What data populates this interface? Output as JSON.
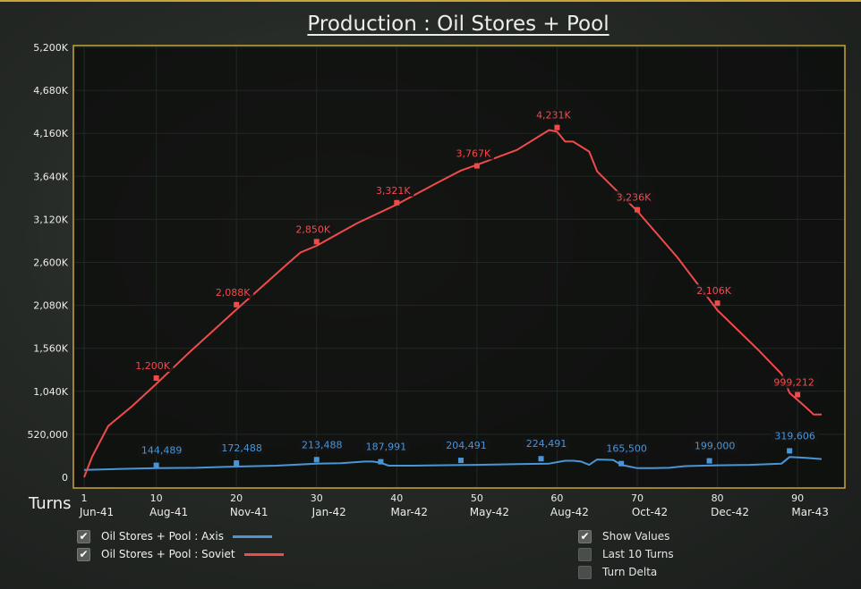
{
  "title": "Production : Oil Stores + Pool",
  "turns_label": "Turns",
  "colors": {
    "axis": "#4a95d6",
    "soviet": "#f04b4b",
    "frame": "#c9a43c"
  },
  "legend": [
    {
      "label": "Oil Stores + Pool : Axis",
      "checked": true,
      "color": "#4a95d6"
    },
    {
      "label": "Oil Stores + Pool : Soviet",
      "checked": true,
      "color": "#f04b4b"
    }
  ],
  "options": [
    {
      "label": "Show Values",
      "checked": true
    },
    {
      "label": "Last 10 Turns",
      "checked": false
    },
    {
      "label": "Turn Delta",
      "checked": false
    }
  ],
  "chart_data": {
    "type": "line",
    "title": "Production : Oil Stores + Pool",
    "xlabel": "Turns",
    "ylabel": "",
    "xlim": [
      1,
      93
    ],
    "ylim": [
      0,
      5200000
    ],
    "grid": true,
    "y_ticks": [
      {
        "value": 0,
        "label": "0"
      },
      {
        "value": 520000,
        "label": "520,000"
      },
      {
        "value": 1040000,
        "label": "1,040K"
      },
      {
        "value": 1560000,
        "label": "1,560K"
      },
      {
        "value": 2080000,
        "label": "2,080K"
      },
      {
        "value": 2600000,
        "label": "2,600K"
      },
      {
        "value": 3120000,
        "label": "3,120K"
      },
      {
        "value": 3640000,
        "label": "3,640K"
      },
      {
        "value": 4160000,
        "label": "4,160K"
      },
      {
        "value": 4680000,
        "label": "4,680K"
      },
      {
        "value": 5200000,
        "label": "5,200K"
      }
    ],
    "x_ticks": [
      {
        "value": 1,
        "num": "1",
        "date": "Jun-41"
      },
      {
        "value": 10,
        "num": "10",
        "date": "Aug-41"
      },
      {
        "value": 20,
        "num": "20",
        "date": "Nov-41"
      },
      {
        "value": 30,
        "num": "30",
        "date": "Jan-42"
      },
      {
        "value": 40,
        "num": "40",
        "date": "Mar-42"
      },
      {
        "value": 50,
        "num": "50",
        "date": "May-42"
      },
      {
        "value": 60,
        "num": "60",
        "date": "Aug-42"
      },
      {
        "value": 70,
        "num": "70",
        "date": "Oct-42"
      },
      {
        "value": 80,
        "num": "80",
        "date": "Dec-42"
      },
      {
        "value": 90,
        "num": "90",
        "date": "Mar-43"
      }
    ],
    "series": [
      {
        "name": "Oil Stores + Pool : Axis",
        "color": "#4a95d6",
        "points": [
          [
            1,
            90000
          ],
          [
            5,
            100000
          ],
          [
            10,
            110000
          ],
          [
            15,
            115000
          ],
          [
            20,
            130000
          ],
          [
            25,
            140000
          ],
          [
            30,
            165000
          ],
          [
            33,
            170000
          ],
          [
            36,
            190000
          ],
          [
            37,
            190000
          ],
          [
            38,
            175000
          ],
          [
            39,
            140000
          ],
          [
            42,
            140000
          ],
          [
            45,
            145000
          ],
          [
            50,
            150000
          ],
          [
            55,
            160000
          ],
          [
            59,
            165000
          ],
          [
            61,
            200000
          ],
          [
            62,
            200000
          ],
          [
            63,
            190000
          ],
          [
            64,
            150000
          ],
          [
            65,
            215000
          ],
          [
            67,
            210000
          ],
          [
            68,
            150000
          ],
          [
            70,
            110000
          ],
          [
            72,
            110000
          ],
          [
            74,
            115000
          ],
          [
            76,
            135000
          ],
          [
            80,
            145000
          ],
          [
            84,
            150000
          ],
          [
            88,
            165000
          ],
          [
            89,
            245000
          ],
          [
            91,
            235000
          ],
          [
            93,
            220000
          ]
        ],
        "annotations": [
          {
            "x": 10,
            "y": 144489,
            "label": "144,489"
          },
          {
            "x": 20,
            "y": 172488,
            "label": "172,488"
          },
          {
            "x": 30,
            "y": 213488,
            "label": "213,488"
          },
          {
            "x": 38,
            "y": 187991,
            "label": "187,991"
          },
          {
            "x": 48,
            "y": 204491,
            "label": "204,491"
          },
          {
            "x": 58,
            "y": 224491,
            "label": "224,491"
          },
          {
            "x": 68,
            "y": 165500,
            "label": "165,500"
          },
          {
            "x": 79,
            "y": 199000,
            "label": "199,000"
          },
          {
            "x": 89,
            "y": 319606,
            "label": "319,606"
          }
        ]
      },
      {
        "name": "Oil Stores + Pool : Soviet",
        "color": "#f04b4b",
        "points": [
          [
            1,
            0
          ],
          [
            2,
            250000
          ],
          [
            4,
            620000
          ],
          [
            7,
            860000
          ],
          [
            10,
            1130000
          ],
          [
            14,
            1500000
          ],
          [
            20,
            2030000
          ],
          [
            26,
            2550000
          ],
          [
            28,
            2720000
          ],
          [
            30,
            2800000
          ],
          [
            35,
            3070000
          ],
          [
            40,
            3300000
          ],
          [
            45,
            3560000
          ],
          [
            48,
            3710000
          ],
          [
            50,
            3780000
          ],
          [
            55,
            3960000
          ],
          [
            59,
            4200000
          ],
          [
            60,
            4180000
          ],
          [
            61,
            4060000
          ],
          [
            62,
            4060000
          ],
          [
            64,
            3940000
          ],
          [
            65,
            3700000
          ],
          [
            70,
            3220000
          ],
          [
            75,
            2660000
          ],
          [
            80,
            2020000
          ],
          [
            85,
            1550000
          ],
          [
            88,
            1250000
          ],
          [
            89,
            1020000
          ],
          [
            91,
            850000
          ],
          [
            92,
            760000
          ],
          [
            93,
            760000
          ]
        ],
        "annotations": [
          {
            "x": 10,
            "y": 1200000,
            "label": "1,200K"
          },
          {
            "x": 20,
            "y": 2088000,
            "label": "2,088K"
          },
          {
            "x": 30,
            "y": 2850000,
            "label": "2,850K"
          },
          {
            "x": 40,
            "y": 3321000,
            "label": "3,321K"
          },
          {
            "x": 50,
            "y": 3767000,
            "label": "3,767K"
          },
          {
            "x": 60,
            "y": 4231000,
            "label": "4,231K"
          },
          {
            "x": 70,
            "y": 3236000,
            "label": "3,236K"
          },
          {
            "x": 80,
            "y": 2106000,
            "label": "2,106K"
          },
          {
            "x": 90,
            "y": 999212,
            "label": "999,212"
          }
        ]
      }
    ]
  }
}
